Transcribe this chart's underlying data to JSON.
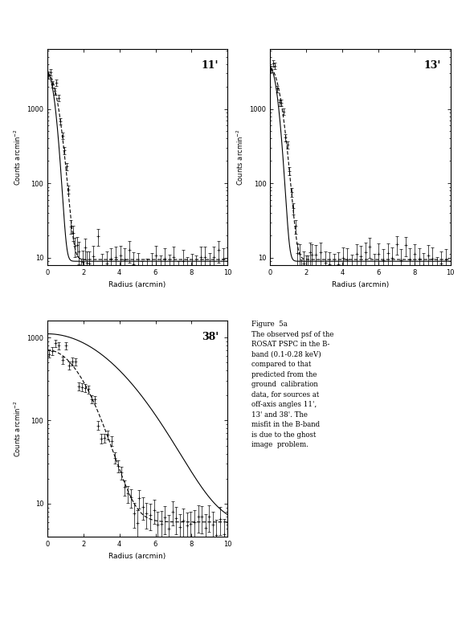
{
  "panels": [
    {
      "label": "11'",
      "ylabel": "Counts arcmin$^{-2}$",
      "xlabel": "Radius (arcmin)",
      "ylim_log": [
        0.9,
        3.8
      ],
      "xlim": [
        0,
        10
      ],
      "yticks": [
        10,
        100,
        1000
      ],
      "yticklabels": [
        "10",
        "100",
        "1000"
      ],
      "xticks": [
        0,
        2,
        4,
        6,
        8,
        10
      ],
      "bg_dot": 9.5,
      "bg_solid": 9.0,
      "peak_dot": 3000,
      "peak_solid": 3000,
      "sigma_dot": 0.42,
      "sigma_solid": 0.3,
      "data_sigma": 0.42,
      "data_peak": 3000,
      "data_bg": 9.5
    },
    {
      "label": "13'",
      "ylabel": "Counts arcmin$^{-2}$",
      "xlabel": "Radius (arcmin)",
      "ylim_log": [
        0.9,
        3.8
      ],
      "xlim": [
        0,
        10
      ],
      "yticks": [
        10,
        100,
        1000
      ],
      "yticklabels": [
        "10",
        "100",
        "1000"
      ],
      "xticks": [
        0,
        2,
        4,
        6,
        8,
        10
      ],
      "bg_dot": 9.5,
      "bg_solid": 9.0,
      "peak_dot": 3500,
      "peak_solid": 3500,
      "sigma_dot": 0.42,
      "sigma_solid": 0.3,
      "data_sigma": 0.42,
      "data_peak": 3500,
      "data_bg": 9.5
    },
    {
      "label": "38'",
      "ylabel": "Counts arcmin$^{-2}$",
      "xlabel": "Radius (arcmin)",
      "ylim_log": [
        0.6,
        3.2
      ],
      "xlim": [
        0,
        10
      ],
      "yticks": [
        10,
        100,
        1000
      ],
      "yticklabels": [
        "10",
        "100",
        "1000"
      ],
      "xticks": [
        0,
        2,
        4,
        6,
        8,
        10
      ],
      "bg_dot": 6.0,
      "bg_solid": 5.5,
      "peak_dot": 700,
      "peak_solid": 1100,
      "sigma_dot": 1.5,
      "sigma_solid": 2.8,
      "data_sigma": 1.5,
      "data_peak": 700,
      "data_bg": 6.0
    }
  ],
  "figure_caption": "Figure  5a\nThe observed psf of the\nROSAT PSPC in the B-\nband (0.1-0.28 keV)\ncompared to that\npredicted from the\nground  calibration\ndata, for sources at\noff-axis angles 11',\n13' and 38'. The\nmisfit in the B-band\nis due to the ghost\nimage  problem.",
  "bg_color": "white",
  "line_color": "black"
}
